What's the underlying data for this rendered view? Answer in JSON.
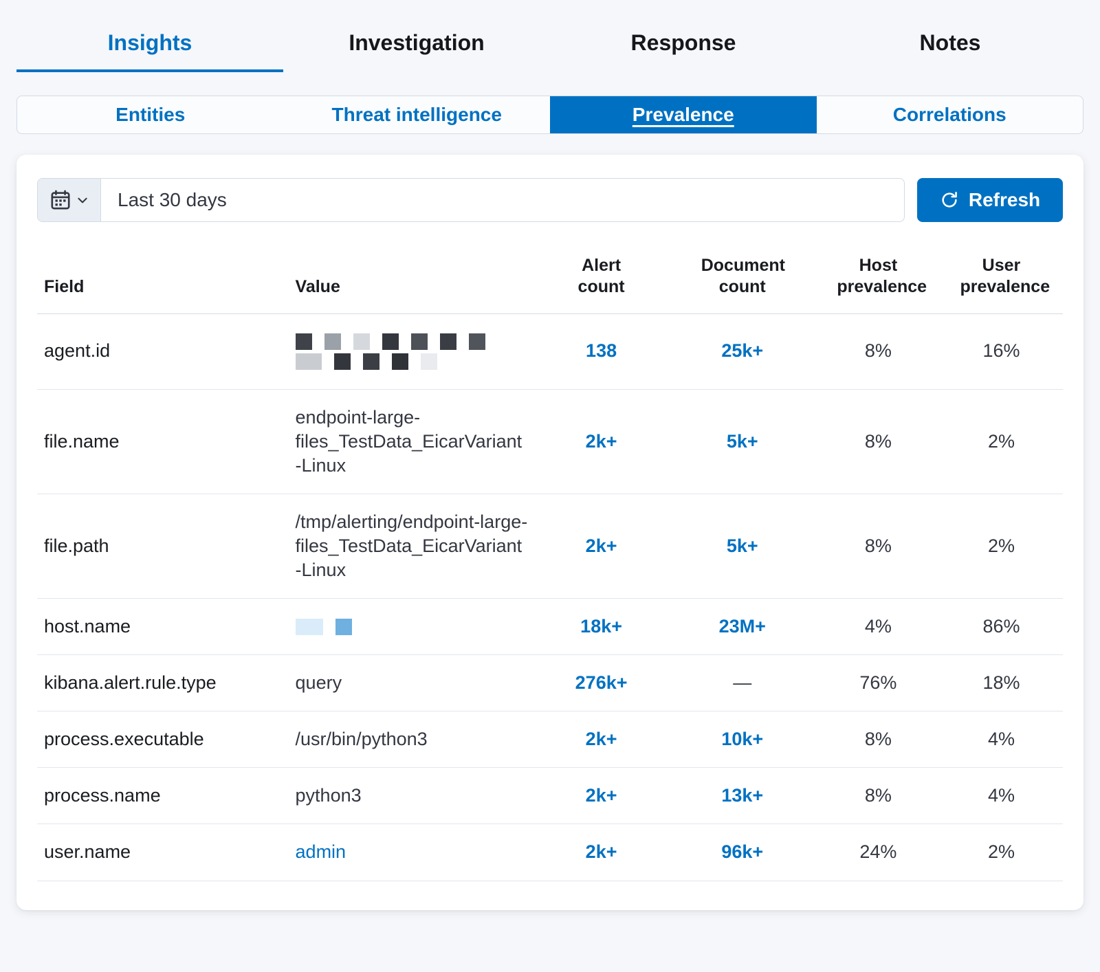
{
  "tabs": {
    "items": [
      {
        "label": "Insights",
        "active": true
      },
      {
        "label": "Investigation",
        "active": false
      },
      {
        "label": "Response",
        "active": false
      },
      {
        "label": "Notes",
        "active": false
      }
    ]
  },
  "subtabs": {
    "items": [
      {
        "label": "Entities",
        "active": false
      },
      {
        "label": "Threat intelligence",
        "active": false
      },
      {
        "label": "Prevalence",
        "active": true
      },
      {
        "label": "Correlations",
        "active": false
      }
    ]
  },
  "toolbar": {
    "date_range": "Last 30 days",
    "refresh_label": "Refresh",
    "calendar_icon": "calendar-icon",
    "chevron_icon": "chevron-down-icon",
    "refresh_icon": "refresh-icon"
  },
  "table": {
    "headers": {
      "field": "Field",
      "value": "Value",
      "alert_count": "Alert count",
      "document_count": "Document count",
      "host_prevalence": "Host prevalence",
      "user_prevalence": "User prevalence"
    },
    "rows": [
      {
        "field": "agent.id",
        "value": {
          "type": "redacted",
          "blocks": [
            [
              "#3f4249",
              "#9ba1a8",
              "#d5d8dd",
              "#34373d",
              "#4d5158",
              "#3a3d44",
              "#50545b"
            ],
            [
              "#c9cdd2 38",
              "#33363c",
              "#3b3e44",
              "#2f3237",
              "#e9ebee"
            ]
          ]
        },
        "alert_count": "138",
        "document_count": "25k+",
        "host_prevalence": "8%",
        "user_prevalence": "16%"
      },
      {
        "field": "file.name",
        "value": {
          "type": "text",
          "text": "endpoint-large-files_TestData_EicarVariant-Linux"
        },
        "alert_count": "2k+",
        "document_count": "5k+",
        "host_prevalence": "8%",
        "user_prevalence": "2%"
      },
      {
        "field": "file.path",
        "value": {
          "type": "text",
          "text": "/tmp/alerting/endpoint-large-files_TestData_EicarVariant-Linux"
        },
        "alert_count": "2k+",
        "document_count": "5k+",
        "host_prevalence": "8%",
        "user_prevalence": "2%"
      },
      {
        "field": "host.name",
        "value": {
          "type": "redacted",
          "blocks": [
            [
              "#daecfa 40",
              "#6fb0e0"
            ]
          ]
        },
        "alert_count": "18k+",
        "document_count": "23M+",
        "host_prevalence": "4%",
        "user_prevalence": "86%"
      },
      {
        "field": "kibana.alert.rule.type",
        "value": {
          "type": "text",
          "text": "query"
        },
        "alert_count": "276k+",
        "document_count": "—",
        "host_prevalence": "76%",
        "user_prevalence": "18%"
      },
      {
        "field": "process.executable",
        "value": {
          "type": "text",
          "text": "/usr/bin/python3"
        },
        "alert_count": "2k+",
        "document_count": "10k+",
        "host_prevalence": "8%",
        "user_prevalence": "4%"
      },
      {
        "field": "process.name",
        "value": {
          "type": "text",
          "text": "python3"
        },
        "alert_count": "2k+",
        "document_count": "13k+",
        "host_prevalence": "8%",
        "user_prevalence": "4%"
      },
      {
        "field": "user.name",
        "value": {
          "type": "link",
          "text": "admin"
        },
        "alert_count": "2k+",
        "document_count": "96k+",
        "host_prevalence": "24%",
        "user_prevalence": "2%"
      }
    ]
  },
  "colors": {
    "primary": "#0071c2",
    "text": "#1a1c21",
    "border": "#d3dae6",
    "background": "#f5f7fa"
  }
}
